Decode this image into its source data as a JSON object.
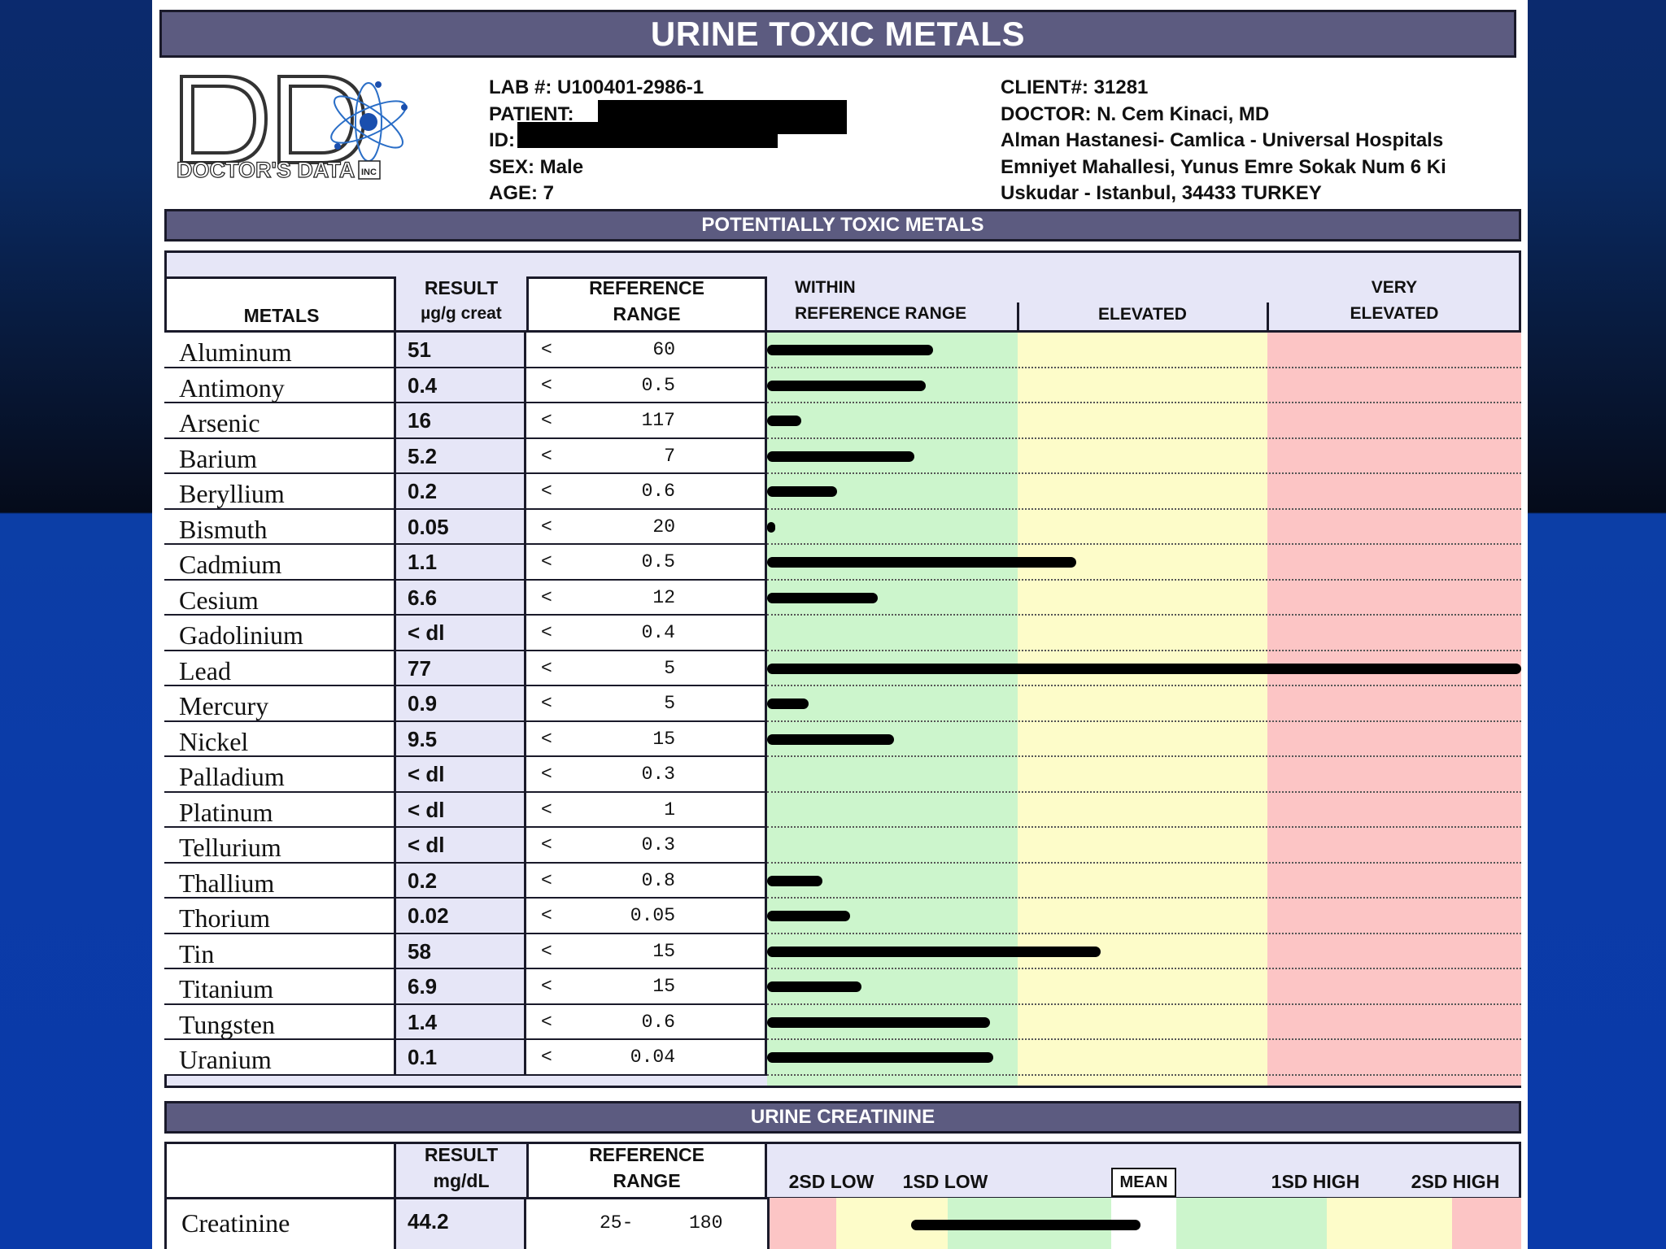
{
  "report": {
    "title": "URINE TOXIC METALS",
    "logo_text": "DOCTOR'S DATA",
    "logo_inc": "INC",
    "lab": "LAB #: U100401-2986-1",
    "patient_label": "PATIENT:",
    "id_label": "ID:",
    "sex": "SEX: Male",
    "age": "AGE: 7",
    "client": "CLIENT#: 31281",
    "doctor": "DOCTOR: N. Cem Kinaci, MD",
    "address1": "Alman Hastanesi- Camlica - Universal Hospitals",
    "address2": "Emniyet Mahallesi, Yunus Emre Sokak Num 6 Ki",
    "address3": "Uskudar - Istanbul,  34433 TURKEY"
  },
  "metals_section": {
    "title": "POTENTIALLY TOXIC METALS",
    "col_metals": "METALS",
    "col_result": "RESULT",
    "col_result_unit": "µg/g creat",
    "col_reference_1": "REFERENCE",
    "col_reference_2": "RANGE",
    "col_within_1": "WITHIN",
    "col_within_2": "REFERENCE RANGE",
    "col_elevated": "ELEVATED",
    "col_very_1": "VERY",
    "col_very_2": "ELEVATED"
  },
  "colors": {
    "header_bar": "#5c5b80",
    "within_zone": "#ccf5cc",
    "elevated_zone": "#fdfcc9",
    "very_elevated_zone": "#fcc5c5",
    "result_column": "#e6e6f7"
  },
  "metals": [
    {
      "name": "Aluminum",
      "result": "51",
      "ref_op": "<",
      "ref": "60",
      "level": 0.22
    },
    {
      "name": "Antimony",
      "result": "0.4",
      "ref_op": "<",
      "ref": "0.5",
      "level": 0.21
    },
    {
      "name": "Arsenic",
      "result": "16",
      "ref_op": "<",
      "ref": "117",
      "level": 0.045
    },
    {
      "name": "Barium",
      "result": "5.2",
      "ref_op": "<",
      "ref": "7",
      "level": 0.195
    },
    {
      "name": "Beryllium",
      "result": "0.2",
      "ref_op": "<",
      "ref": "0.6",
      "level": 0.093
    },
    {
      "name": "Bismuth",
      "result": "0.05",
      "ref_op": "<",
      "ref": "20",
      "level": 0.01
    },
    {
      "name": "Cadmium",
      "result": "1.1",
      "ref_op": "<",
      "ref": "0.5",
      "level": 0.41
    },
    {
      "name": "Cesium",
      "result": "6.6",
      "ref_op": "<",
      "ref": "12",
      "level": 0.147
    },
    {
      "name": "Gadolinium",
      "result": "< dl",
      "ref_op": "<",
      "ref": "0.4",
      "level": 0
    },
    {
      "name": "Lead",
      "result": "77",
      "ref_op": "<",
      "ref": "5",
      "level": 1.0
    },
    {
      "name": "Mercury",
      "result": "0.9",
      "ref_op": "<",
      "ref": "5",
      "level": 0.055
    },
    {
      "name": "Nickel",
      "result": "9.5",
      "ref_op": "<",
      "ref": "15",
      "level": 0.168
    },
    {
      "name": "Palladium",
      "result": "< dl",
      "ref_op": "<",
      "ref": "0.3",
      "level": 0
    },
    {
      "name": "Platinum",
      "result": "< dl",
      "ref_op": "<",
      "ref": "1",
      "level": 0
    },
    {
      "name": "Tellurium",
      "result": "< dl",
      "ref_op": "<",
      "ref": "0.3",
      "level": 0
    },
    {
      "name": "Thallium",
      "result": "0.2",
      "ref_op": "<",
      "ref": "0.8",
      "level": 0.073
    },
    {
      "name": "Thorium",
      "result": "0.02",
      "ref_op": "<",
      "ref": "0.05",
      "level": 0.11
    },
    {
      "name": "Tin",
      "result": "58",
      "ref_op": "<",
      "ref": "15",
      "level": 0.442
    },
    {
      "name": "Titanium",
      "result": "6.9",
      "ref_op": "<",
      "ref": "15",
      "level": 0.125
    },
    {
      "name": "Tungsten",
      "result": "1.4",
      "ref_op": "<",
      "ref": "0.6",
      "level": 0.296
    },
    {
      "name": "Uranium",
      "result": "0.1",
      "ref_op": "<",
      "ref": "0.04",
      "level": 0.3
    }
  ],
  "creatinine_section": {
    "title": "URINE CREATININE",
    "col_result": "RESULT",
    "col_result_unit": "mg/dL",
    "col_reference_1": "REFERENCE",
    "col_reference_2": "RANGE",
    "label_2sd_low": "2SD LOW",
    "label_1sd_low": "1SD LOW",
    "label_mean": "MEAN",
    "label_1sd_high": "1SD HIGH",
    "label_2sd_high": "2SD HIGH",
    "name": "Creatinine",
    "result": "44.2",
    "ref": "25-",
    "ref_high": "180"
  }
}
